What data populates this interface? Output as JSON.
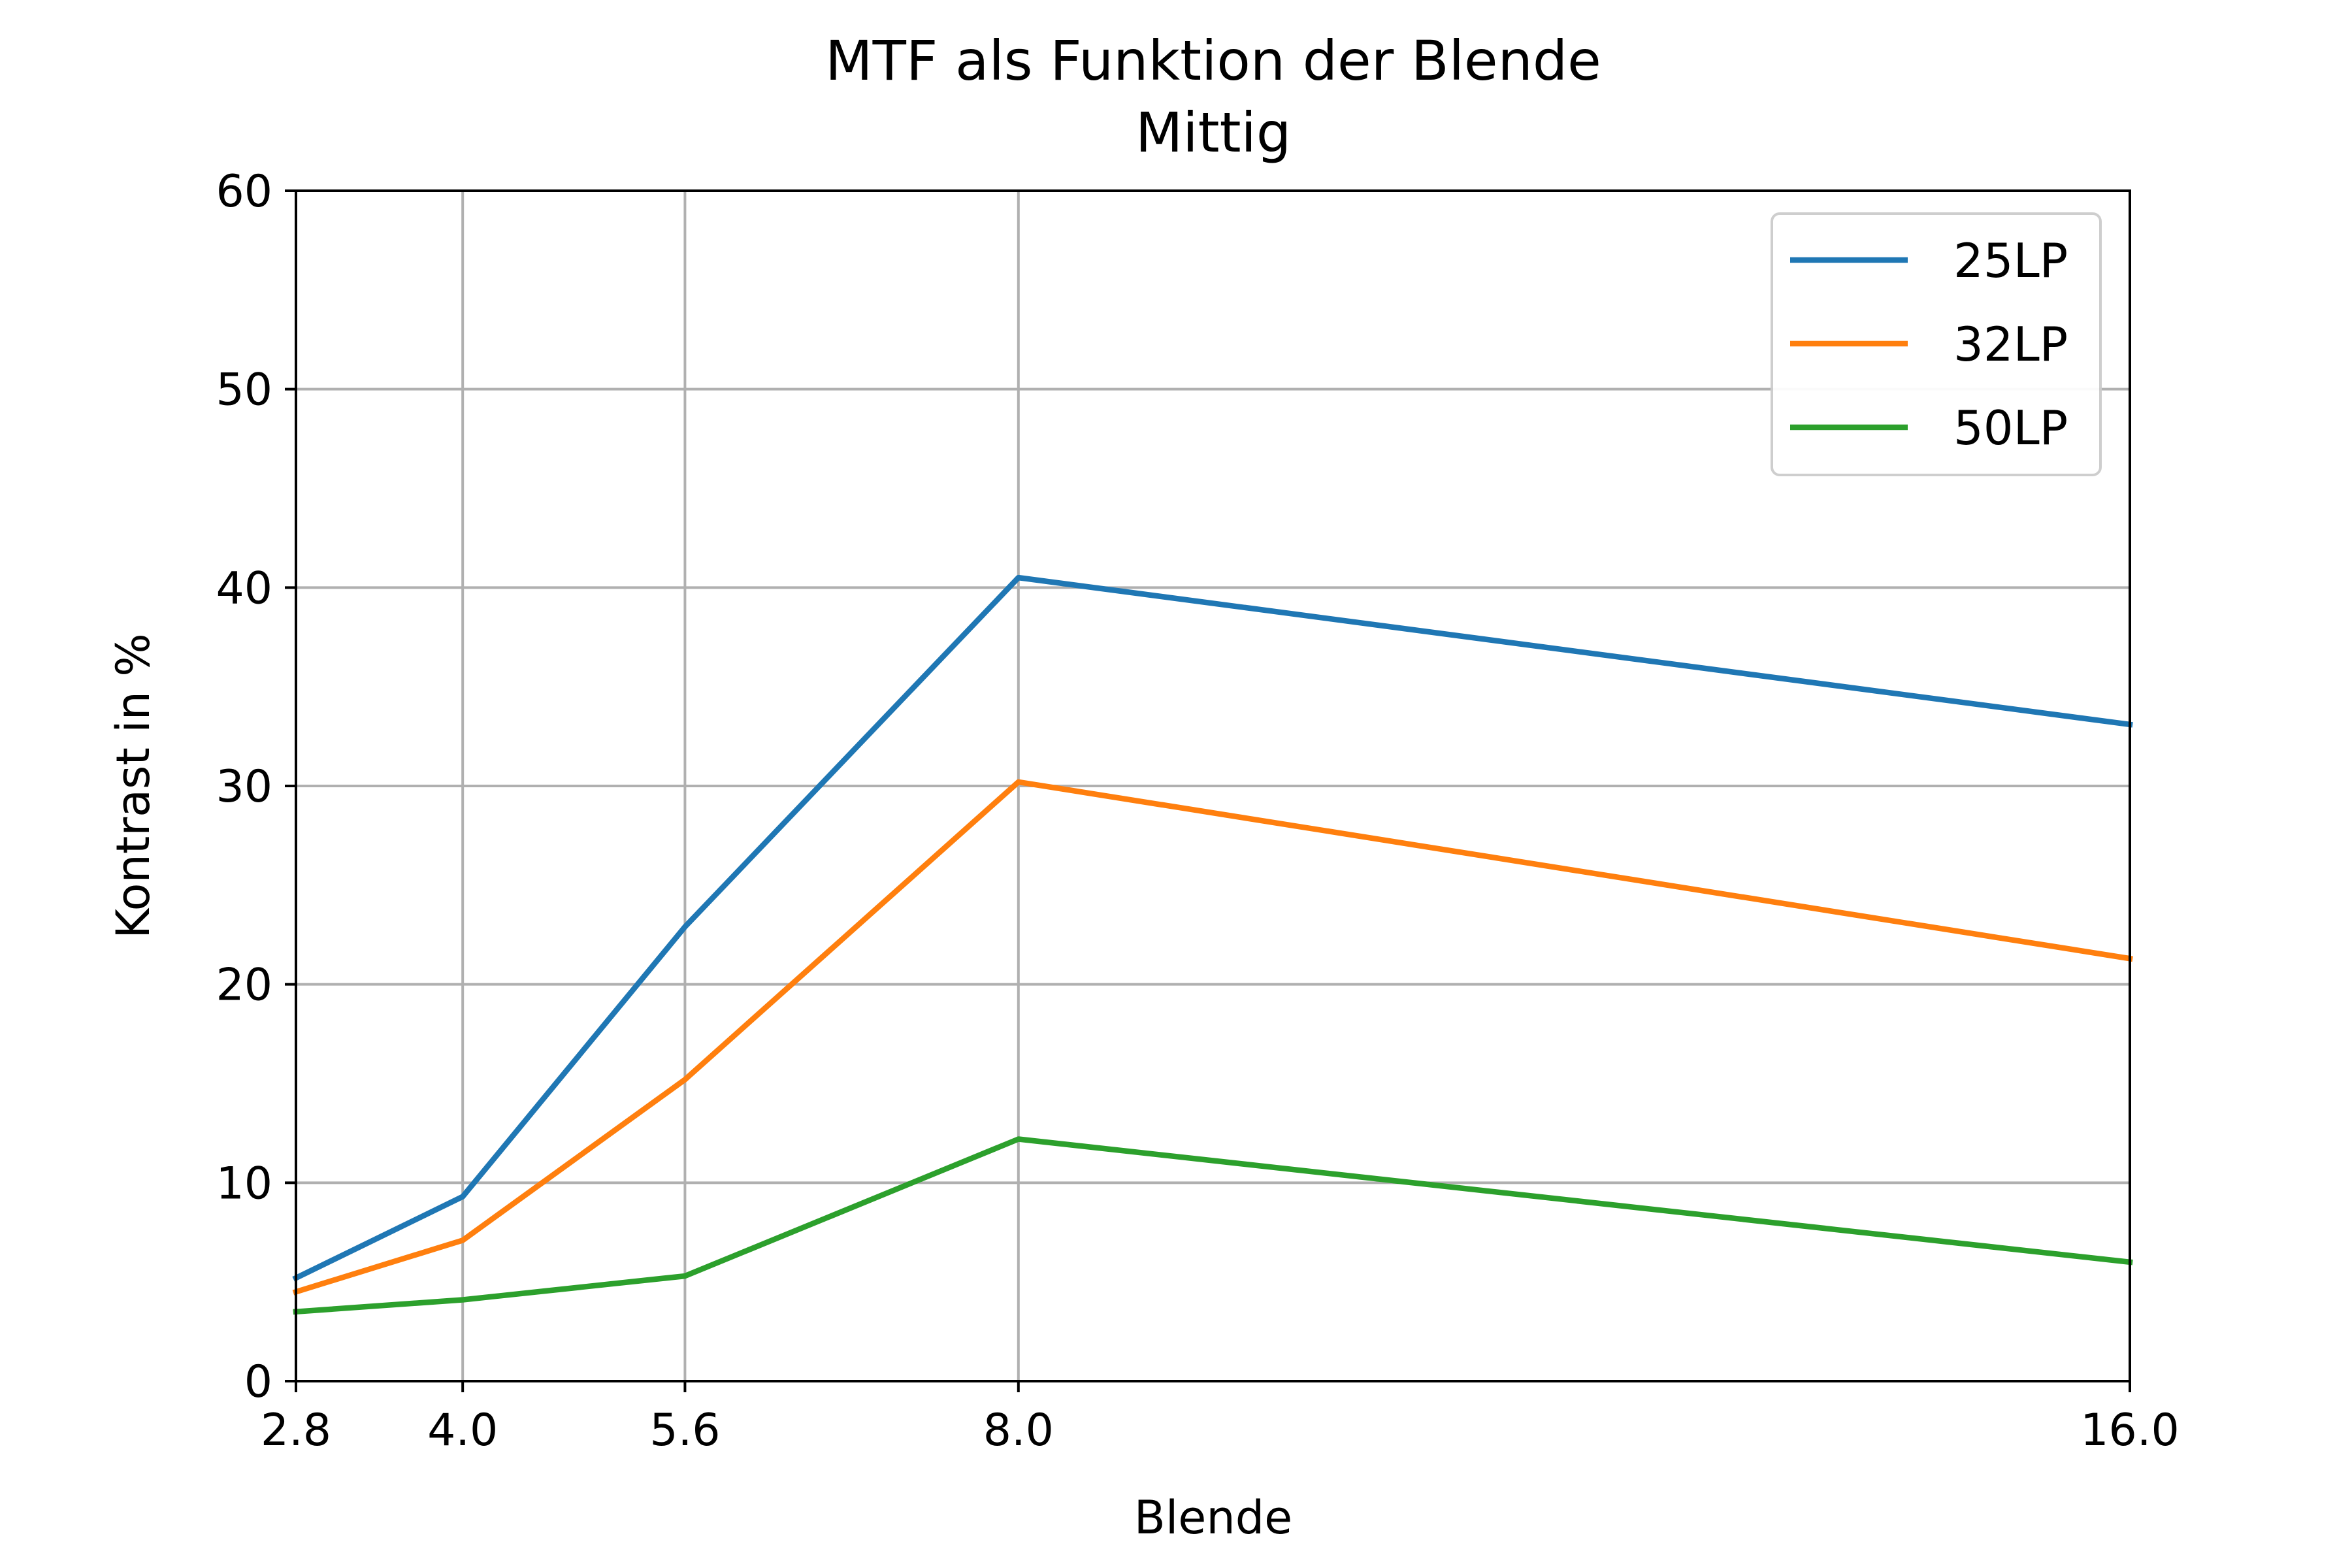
{
  "chart_data": {
    "type": "line",
    "title": "MTF als Funktion der Blende",
    "subtitle": "Mittig",
    "xlabel": "Blende",
    "ylabel": "Kontrast in %",
    "x": [
      2.8,
      4.0,
      5.6,
      8.0,
      16.0
    ],
    "x_tick_labels": [
      "2.8",
      "4.0",
      "5.6",
      "8.0",
      "16.0"
    ],
    "y_ticks": [
      0,
      10,
      20,
      30,
      40,
      50,
      60
    ],
    "y_tick_labels": [
      "0",
      "10",
      "20",
      "30",
      "40",
      "50",
      "60"
    ],
    "xlim": [
      2.8,
      16.0
    ],
    "ylim": [
      0,
      60
    ],
    "grid": true,
    "legend_position": "top-right",
    "series": [
      {
        "name": "25LP",
        "color": "#1f77b4",
        "values": [
          5.2,
          9.3,
          22.9,
          40.5,
          33.1
        ]
      },
      {
        "name": "32LP",
        "color": "#ff7f0e",
        "values": [
          4.5,
          7.1,
          15.2,
          30.2,
          21.3
        ]
      },
      {
        "name": "50LP",
        "color": "#2ca02c",
        "values": [
          3.5,
          4.1,
          5.3,
          12.2,
          6.0
        ]
      }
    ]
  }
}
